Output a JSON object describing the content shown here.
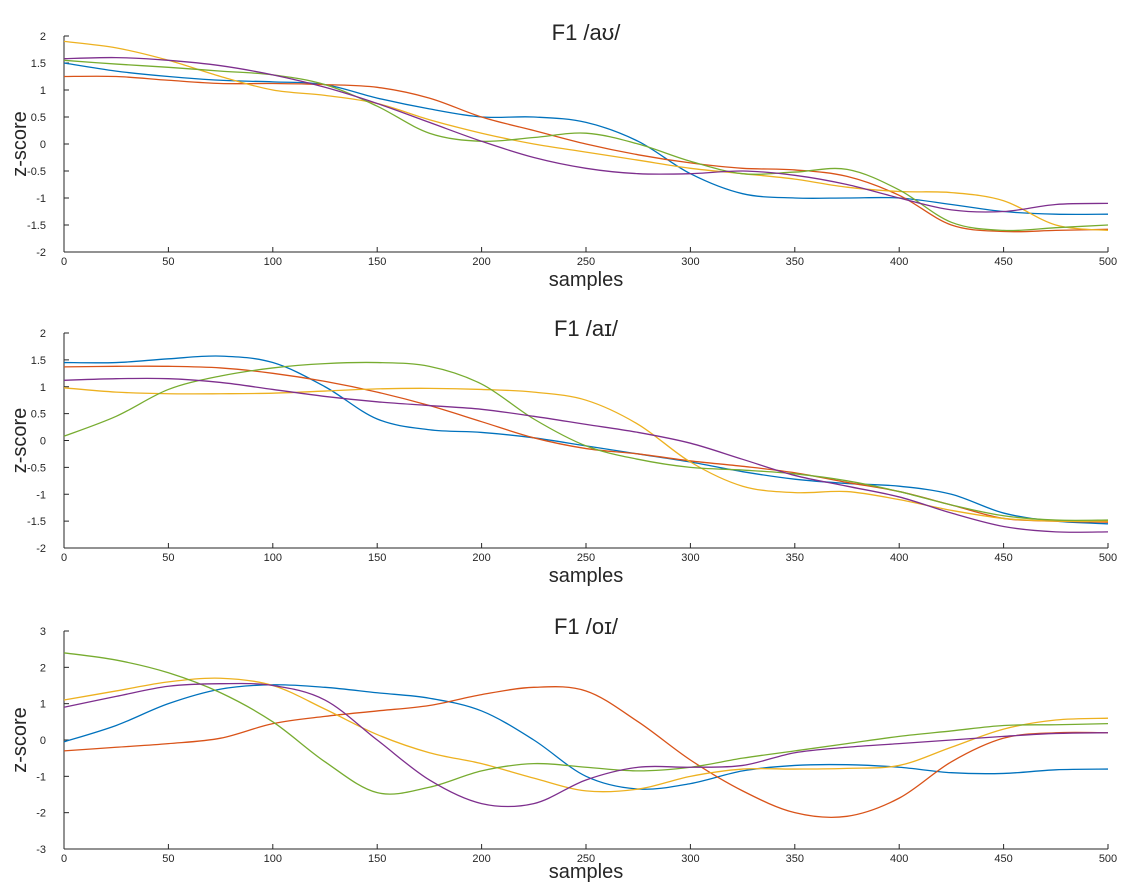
{
  "chart_data": [
    {
      "type": "line",
      "title": "F1 /aʊ/",
      "xlabel": "samples",
      "ylabel": "z-score",
      "xlim": [
        0,
        500
      ],
      "ylim": [
        -2,
        2
      ],
      "xticks": [
        0,
        50,
        100,
        150,
        200,
        250,
        300,
        350,
        400,
        450,
        500
      ],
      "yticks": [
        -2,
        -1.5,
        -1,
        -0.5,
        0,
        0.5,
        1,
        1.5,
        2
      ],
      "grid": false,
      "legend": "none",
      "x": [
        0,
        25,
        50,
        75,
        100,
        125,
        150,
        175,
        200,
        225,
        250,
        275,
        300,
        325,
        350,
        375,
        400,
        425,
        450,
        475,
        500
      ],
      "series": [
        {
          "color": "#0072BD",
          "values": [
            1.5,
            1.35,
            1.25,
            1.18,
            1.15,
            1.1,
            0.85,
            0.65,
            0.5,
            0.5,
            0.4,
            0.05,
            -0.55,
            -0.92,
            -1.0,
            -1.0,
            -1.0,
            -1.12,
            -1.25,
            -1.3,
            -1.3
          ]
        },
        {
          "color": "#D95319",
          "values": [
            1.25,
            1.25,
            1.18,
            1.12,
            1.12,
            1.1,
            1.05,
            0.85,
            0.5,
            0.25,
            0.0,
            -0.2,
            -0.35,
            -0.45,
            -0.48,
            -0.6,
            -0.95,
            -1.5,
            -1.62,
            -1.6,
            -1.58
          ]
        },
        {
          "color": "#EDB120",
          "values": [
            1.9,
            1.78,
            1.55,
            1.25,
            1.0,
            0.9,
            0.75,
            0.45,
            0.2,
            0.0,
            -0.15,
            -0.3,
            -0.45,
            -0.55,
            -0.65,
            -0.8,
            -0.88,
            -0.9,
            -1.05,
            -1.5,
            -1.6
          ]
        },
        {
          "color": "#77AC30",
          "values": [
            1.55,
            1.48,
            1.42,
            1.35,
            1.28,
            1.1,
            0.7,
            0.2,
            0.05,
            0.12,
            0.2,
            0.0,
            -0.32,
            -0.55,
            -0.52,
            -0.47,
            -0.85,
            -1.45,
            -1.6,
            -1.55,
            -1.5
          ]
        },
        {
          "color": "#7E2F8E",
          "values": [
            1.58,
            1.6,
            1.55,
            1.45,
            1.28,
            1.05,
            0.75,
            0.4,
            0.05,
            -0.25,
            -0.45,
            -0.55,
            -0.55,
            -0.5,
            -0.58,
            -0.75,
            -1.0,
            -1.22,
            -1.25,
            -1.12,
            -1.1
          ]
        }
      ]
    },
    {
      "type": "line",
      "title": "F1 /aɪ/",
      "xlabel": "samples",
      "ylabel": "z-score",
      "xlim": [
        0,
        500
      ],
      "ylim": [
        -2,
        2
      ],
      "xticks": [
        0,
        50,
        100,
        150,
        200,
        250,
        300,
        350,
        400,
        450,
        500
      ],
      "yticks": [
        -2,
        -1.5,
        -1,
        -0.5,
        0,
        0.5,
        1,
        1.5,
        2
      ],
      "grid": false,
      "legend": "none",
      "x": [
        0,
        25,
        50,
        75,
        100,
        125,
        150,
        175,
        200,
        225,
        250,
        275,
        300,
        325,
        350,
        375,
        400,
        425,
        450,
        475,
        500
      ],
      "series": [
        {
          "color": "#0072BD",
          "values": [
            1.45,
            1.45,
            1.52,
            1.57,
            1.45,
            1.0,
            0.4,
            0.2,
            0.15,
            0.05,
            -0.1,
            -0.25,
            -0.4,
            -0.58,
            -0.72,
            -0.8,
            -0.85,
            -1.0,
            -1.35,
            -1.5,
            -1.55
          ]
        },
        {
          "color": "#D95319",
          "values": [
            1.37,
            1.38,
            1.38,
            1.35,
            1.25,
            1.1,
            0.9,
            0.65,
            0.35,
            0.05,
            -0.15,
            -0.25,
            -0.38,
            -0.48,
            -0.6,
            -0.78,
            -0.95,
            -1.2,
            -1.45,
            -1.5,
            -1.52
          ]
        },
        {
          "color": "#EDB120",
          "values": [
            0.98,
            0.9,
            0.87,
            0.87,
            0.88,
            0.92,
            0.96,
            0.97,
            0.95,
            0.9,
            0.75,
            0.3,
            -0.4,
            -0.85,
            -0.97,
            -0.95,
            -1.1,
            -1.3,
            -1.45,
            -1.5,
            -1.5
          ]
        },
        {
          "color": "#77AC30",
          "values": [
            0.08,
            0.45,
            0.95,
            1.2,
            1.35,
            1.43,
            1.45,
            1.38,
            1.05,
            0.4,
            -0.1,
            -0.35,
            -0.5,
            -0.55,
            -0.62,
            -0.75,
            -0.95,
            -1.2,
            -1.4,
            -1.48,
            -1.48
          ]
        },
        {
          "color": "#7E2F8E",
          "values": [
            1.12,
            1.15,
            1.15,
            1.08,
            0.95,
            0.82,
            0.72,
            0.65,
            0.58,
            0.45,
            0.3,
            0.15,
            -0.05,
            -0.35,
            -0.65,
            -0.85,
            -1.05,
            -1.35,
            -1.6,
            -1.7,
            -1.7
          ]
        }
      ]
    },
    {
      "type": "line",
      "title": "F1 /oɪ/",
      "xlabel": "samples",
      "ylabel": "z-score",
      "xlim": [
        0,
        500
      ],
      "ylim": [
        -3,
        3
      ],
      "xticks": [
        0,
        50,
        100,
        150,
        200,
        250,
        300,
        350,
        400,
        450,
        500
      ],
      "yticks": [
        -3,
        -2,
        -1,
        0,
        1,
        2,
        3
      ],
      "grid": false,
      "legend": "none",
      "x": [
        0,
        25,
        50,
        75,
        100,
        125,
        150,
        175,
        200,
        225,
        250,
        275,
        300,
        325,
        350,
        375,
        400,
        425,
        450,
        475,
        500
      ],
      "series": [
        {
          "color": "#0072BD",
          "values": [
            -0.05,
            0.4,
            1.0,
            1.4,
            1.52,
            1.45,
            1.3,
            1.15,
            0.8,
            0.0,
            -1.0,
            -1.35,
            -1.2,
            -0.85,
            -0.7,
            -0.68,
            -0.75,
            -0.9,
            -0.92,
            -0.82,
            -0.8
          ]
        },
        {
          "color": "#D95319",
          "values": [
            -0.3,
            -0.2,
            -0.1,
            0.05,
            0.45,
            0.65,
            0.8,
            0.95,
            1.25,
            1.45,
            1.35,
            0.5,
            -0.55,
            -1.4,
            -2.0,
            -2.1,
            -1.6,
            -0.6,
            0.05,
            0.2,
            0.2
          ]
        },
        {
          "color": "#EDB120",
          "values": [
            1.1,
            1.35,
            1.6,
            1.7,
            1.5,
            0.85,
            0.15,
            -0.35,
            -0.65,
            -1.05,
            -1.4,
            -1.35,
            -1.0,
            -0.8,
            -0.8,
            -0.78,
            -0.7,
            -0.2,
            0.3,
            0.55,
            0.6
          ]
        },
        {
          "color": "#77AC30",
          "values": [
            2.4,
            2.2,
            1.85,
            1.3,
            0.5,
            -0.6,
            -1.45,
            -1.3,
            -0.85,
            -0.65,
            -0.75,
            -0.85,
            -0.75,
            -0.5,
            -0.3,
            -0.1,
            0.1,
            0.25,
            0.4,
            0.42,
            0.45
          ]
        },
        {
          "color": "#7E2F8E",
          "values": [
            0.9,
            1.2,
            1.48,
            1.55,
            1.5,
            1.1,
            0.0,
            -1.1,
            -1.75,
            -1.75,
            -1.1,
            -0.75,
            -0.75,
            -0.7,
            -0.35,
            -0.2,
            -0.1,
            0.0,
            0.1,
            0.18,
            0.2
          ]
        }
      ]
    }
  ]
}
